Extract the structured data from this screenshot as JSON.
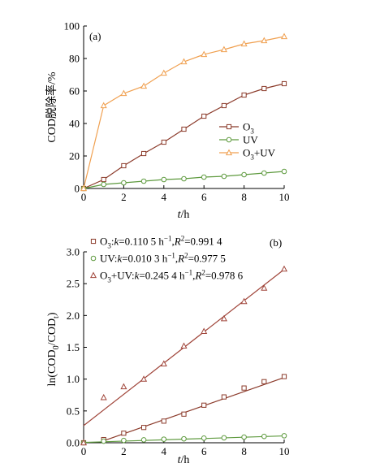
{
  "figure": {
    "panels": [
      {
        "label": "(a)",
        "ylabel": "COD脱除率/%",
        "xlabel": "t/h",
        "legend": [
          "O3",
          "UV",
          "O3+UV"
        ]
      },
      {
        "label": "(b)",
        "ylabel": "ln(COD0/CODt)",
        "xlabel": "t/h",
        "legend": [
          "O3:k=0.110 5 h⁻¹,R²=0.991 4",
          "UV:k=0.010 3  h⁻¹,R²=0.977 5",
          "O3+UV:k=0.245 4 h⁻¹,R²=0.978 6"
        ]
      }
    ]
  },
  "colors": {
    "O3": "#8b3a2a",
    "UV": "#5e9a3e",
    "O3+UV": "#f0a050",
    "O3+UV_b": "#a0453a"
  },
  "chart_data": [
    {
      "type": "line",
      "title": "",
      "xlabel": "t/h",
      "ylabel": "COD脱除率/%",
      "xlim": [
        0,
        10
      ],
      "ylim": [
        0,
        100
      ],
      "xticks": [
        0,
        2,
        4,
        6,
        8,
        10
      ],
      "yticks": [
        0,
        20,
        40,
        60,
        80,
        100
      ],
      "x": [
        0,
        1,
        2,
        3,
        4,
        5,
        6,
        7,
        8,
        9,
        10
      ],
      "series": [
        {
          "name": "O3",
          "marker": "square",
          "values": [
            0,
            5.5,
            14,
            21.5,
            28.5,
            36.5,
            44.5,
            51,
            57.5,
            61.5,
            64.5
          ]
        },
        {
          "name": "UV",
          "marker": "circle",
          "values": [
            0,
            2.5,
            3.5,
            4.5,
            5.5,
            6,
            7,
            7.5,
            8.5,
            9.5,
            10.5
          ]
        },
        {
          "name": "O3+UV",
          "marker": "triangle",
          "values": [
            0,
            51,
            58.5,
            63,
            71,
            78,
            82.5,
            85.5,
            89,
            91,
            93.5
          ]
        }
      ],
      "legend_position": "right"
    },
    {
      "type": "scatter",
      "title": "",
      "xlabel": "t/h",
      "ylabel": "ln(COD0/CODt)",
      "xlim": [
        0,
        10
      ],
      "ylim": [
        0,
        3.0
      ],
      "xticks": [
        0,
        2,
        4,
        6,
        8,
        10
      ],
      "yticks": [
        0,
        0.5,
        1.0,
        1.5,
        2.0,
        2.5,
        3.0
      ],
      "x": [
        0,
        1,
        2,
        3,
        4,
        5,
        6,
        7,
        8,
        9,
        10
      ],
      "series": [
        {
          "name": "O3",
          "marker": "square",
          "values": [
            0,
            0.05,
            0.15,
            0.24,
            0.34,
            0.45,
            0.59,
            0.72,
            0.86,
            0.96,
            1.04
          ],
          "fit": {
            "k": 0.1105,
            "intercept": -0.08,
            "x_range": [
              1,
              10
            ]
          }
        },
        {
          "name": "UV",
          "marker": "circle",
          "values": [
            0,
            0.025,
            0.036,
            0.046,
            0.056,
            0.062,
            0.073,
            0.078,
            0.089,
            0.1,
            0.11
          ],
          "fit": {
            "k": 0.0103,
            "intercept": 0.005,
            "x_range": [
              0,
              10
            ]
          }
        },
        {
          "name": "O3+UV",
          "marker": "triangle",
          "values": [
            0,
            0.71,
            0.88,
            1.0,
            1.24,
            1.52,
            1.75,
            1.95,
            2.22,
            2.43,
            2.73
          ],
          "fit": {
            "k": 0.2454,
            "intercept": 0.27,
            "x_range": [
              0,
              10
            ]
          }
        }
      ],
      "legend_position": "top-left"
    }
  ]
}
